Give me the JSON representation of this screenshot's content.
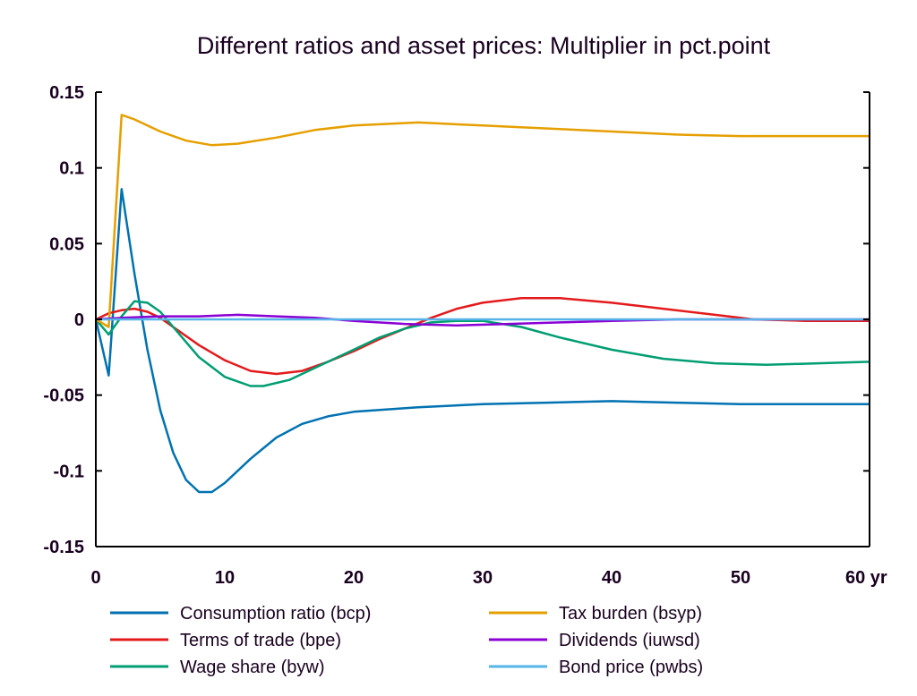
{
  "chart_data": {
    "type": "line",
    "title": "Different ratios and asset prices: Multiplier in pct.point",
    "xlabel": "yr",
    "ylabel": "",
    "xlim": [
      0,
      60
    ],
    "ylim": [
      -0.15,
      0.15
    ],
    "x_ticks": [
      0,
      10,
      20,
      30,
      40,
      50,
      60
    ],
    "x_tick_labels": [
      "0",
      "10",
      "20",
      "30",
      "40",
      "50",
      "60 yr"
    ],
    "y_ticks": [
      0.15,
      0.1,
      0.05,
      0,
      -0.05,
      -0.1,
      -0.15
    ],
    "y_tick_labels": [
      "0.15",
      "0.1",
      "0.05",
      "0",
      "-0.05",
      "-0.1",
      "-0.15"
    ],
    "grid": false,
    "legend_position": "bottom",
    "series": [
      {
        "name": "Consumption ratio (bcp)",
        "color": "#0072b2",
        "points": [
          [
            0,
            0
          ],
          [
            1,
            -0.037
          ],
          [
            2,
            0.086
          ],
          [
            3,
            0.03
          ],
          [
            4,
            -0.02
          ],
          [
            5,
            -0.06
          ],
          [
            6,
            -0.088
          ],
          [
            7,
            -0.106
          ],
          [
            8,
            -0.114
          ],
          [
            9,
            -0.114
          ],
          [
            10,
            -0.108
          ],
          [
            12,
            -0.092
          ],
          [
            14,
            -0.078
          ],
          [
            16,
            -0.069
          ],
          [
            18,
            -0.064
          ],
          [
            20,
            -0.061
          ],
          [
            25,
            -0.058
          ],
          [
            30,
            -0.056
          ],
          [
            35,
            -0.055
          ],
          [
            40,
            -0.054
          ],
          [
            45,
            -0.055
          ],
          [
            50,
            -0.056
          ],
          [
            55,
            -0.056
          ],
          [
            60,
            -0.056
          ]
        ]
      },
      {
        "name": "Terms of trade (bpe)",
        "color": "#e41a1c",
        "points": [
          [
            0,
            0
          ],
          [
            1,
            0.004
          ],
          [
            2,
            0.006
          ],
          [
            3,
            0.007
          ],
          [
            4,
            0.005
          ],
          [
            5,
            0.001
          ],
          [
            6,
            -0.005
          ],
          [
            8,
            -0.017
          ],
          [
            10,
            -0.027
          ],
          [
            12,
            -0.034
          ],
          [
            14,
            -0.036
          ],
          [
            16,
            -0.034
          ],
          [
            18,
            -0.028
          ],
          [
            20,
            -0.021
          ],
          [
            22,
            -0.013
          ],
          [
            24,
            -0.006
          ],
          [
            26,
            0.001
          ],
          [
            28,
            0.007
          ],
          [
            30,
            0.011
          ],
          [
            33,
            0.014
          ],
          [
            36,
            0.014
          ],
          [
            40,
            0.011
          ],
          [
            44,
            0.007
          ],
          [
            48,
            0.003
          ],
          [
            51,
            0
          ],
          [
            55,
            -0.001
          ],
          [
            60,
            -0.001
          ]
        ]
      },
      {
        "name": "Wage share (byw)",
        "color": "#009e73",
        "points": [
          [
            0,
            0
          ],
          [
            1,
            -0.01
          ],
          [
            2,
            0.002
          ],
          [
            3,
            0.012
          ],
          [
            4,
            0.011
          ],
          [
            5,
            0.005
          ],
          [
            6,
            -0.005
          ],
          [
            8,
            -0.025
          ],
          [
            10,
            -0.038
          ],
          [
            12,
            -0.044
          ],
          [
            13,
            -0.044
          ],
          [
            15,
            -0.04
          ],
          [
            18,
            -0.028
          ],
          [
            20,
            -0.02
          ],
          [
            22,
            -0.012
          ],
          [
            24,
            -0.006
          ],
          [
            26,
            -0.002
          ],
          [
            28,
            -0.001
          ],
          [
            30,
            -0.001
          ],
          [
            33,
            -0.005
          ],
          [
            36,
            -0.012
          ],
          [
            40,
            -0.02
          ],
          [
            44,
            -0.026
          ],
          [
            48,
            -0.029
          ],
          [
            52,
            -0.03
          ],
          [
            56,
            -0.029
          ],
          [
            60,
            -0.028
          ]
        ]
      },
      {
        "name": "Tax burden (bsyp)",
        "color": "#e69f00",
        "points": [
          [
            0,
            0
          ],
          [
            1,
            -0.005
          ],
          [
            2,
            0.135
          ],
          [
            3,
            0.132
          ],
          [
            5,
            0.124
          ],
          [
            7,
            0.118
          ],
          [
            9,
            0.115
          ],
          [
            11,
            0.116
          ],
          [
            14,
            0.12
          ],
          [
            17,
            0.125
          ],
          [
            20,
            0.128
          ],
          [
            25,
            0.13
          ],
          [
            30,
            0.128
          ],
          [
            35,
            0.126
          ],
          [
            40,
            0.124
          ],
          [
            45,
            0.122
          ],
          [
            50,
            0.121
          ],
          [
            55,
            0.121
          ],
          [
            60,
            0.121
          ]
        ]
      },
      {
        "name": "Dividends (iuwsd)",
        "color": "#8b00d4",
        "points": [
          [
            0,
            0
          ],
          [
            2,
            0.001
          ],
          [
            5,
            0.002
          ],
          [
            8,
            0.002
          ],
          [
            11,
            0.003
          ],
          [
            14,
            0.002
          ],
          [
            17,
            0.001
          ],
          [
            20,
            -0.001
          ],
          [
            24,
            -0.003
          ],
          [
            28,
            -0.004
          ],
          [
            32,
            -0.003
          ],
          [
            36,
            -0.002
          ],
          [
            40,
            -0.001
          ],
          [
            45,
            0
          ],
          [
            50,
            0
          ],
          [
            55,
            0
          ],
          [
            60,
            0
          ]
        ]
      },
      {
        "name": "Bond price (pwbs)",
        "color": "#56b4e9",
        "points": [
          [
            0,
            0
          ],
          [
            60,
            0
          ]
        ]
      }
    ]
  }
}
